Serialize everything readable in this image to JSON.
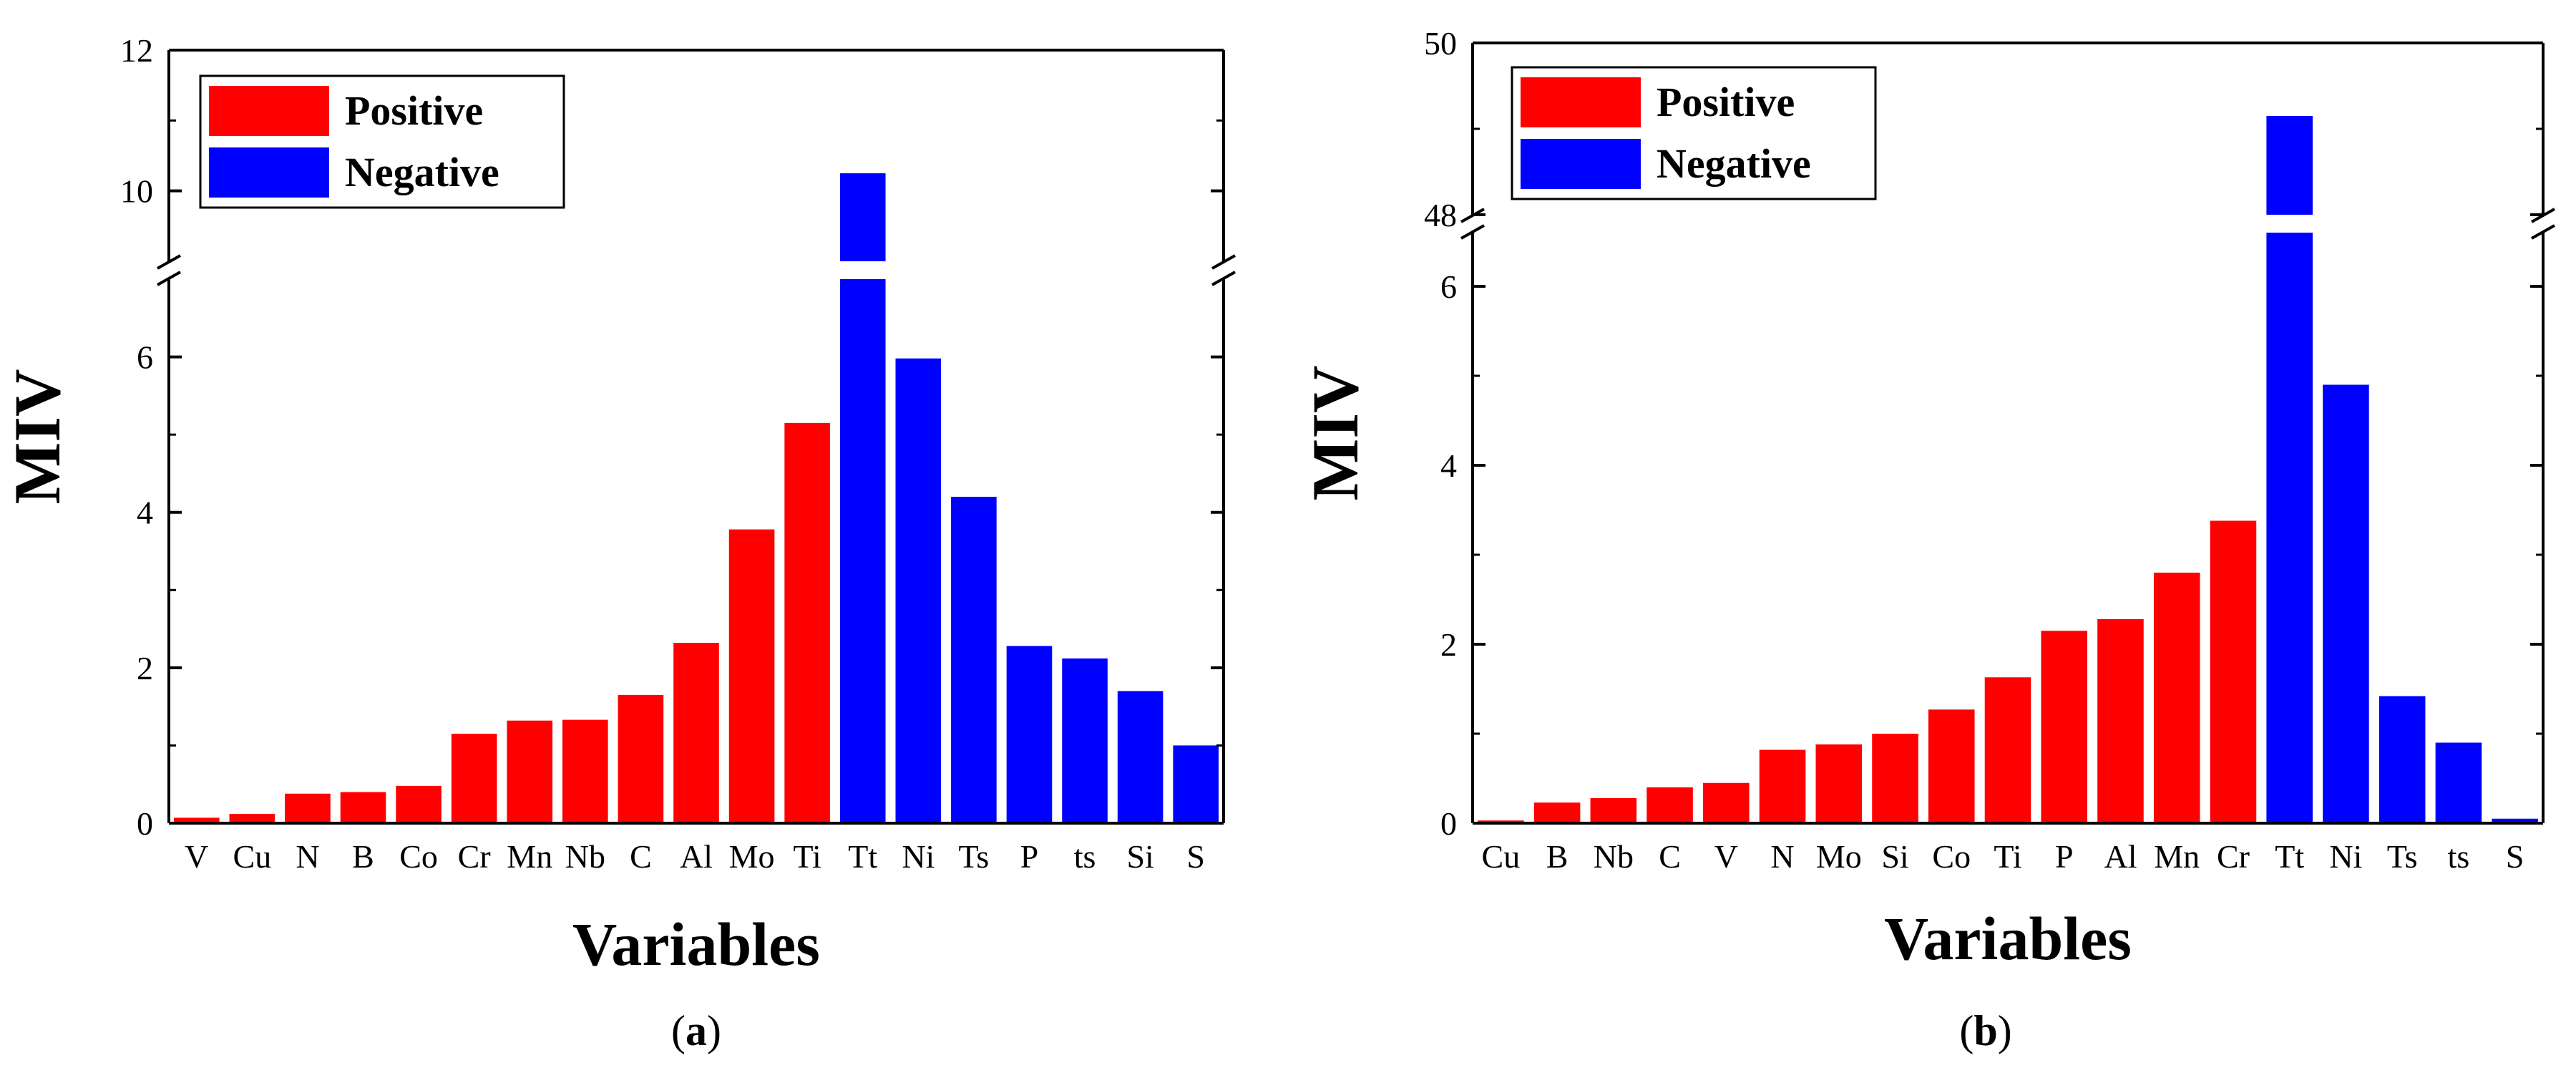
{
  "colors": {
    "positive": "#ff0000",
    "negative": "#0000ff"
  },
  "chart_data": [
    {
      "id": "a",
      "type": "bar",
      "caption_open": "(",
      "caption_letter": "a",
      "caption_close": ")",
      "xlabel": "Variables",
      "ylabel": "MIV",
      "legend": [
        {
          "label": "Positive",
          "color": "#ff0000"
        },
        {
          "label": "Negative",
          "color": "#0000ff"
        }
      ],
      "legend_position": "top-left",
      "axis_break": {
        "lower_range": [
          0,
          7
        ],
        "upper_range": [
          9,
          12
        ]
      },
      "lower_ticks": [
        0,
        2,
        4,
        6
      ],
      "upper_ticks": [
        10,
        12
      ],
      "categories": [
        "V",
        "Cu",
        "N",
        "B",
        "Co",
        "Cr",
        "Mn",
        "Nb",
        "C",
        "Al",
        "Mo",
        "Ti",
        "Tt",
        "Ni",
        "Ts",
        "P",
        "ts",
        "Si",
        "S"
      ],
      "values": [
        0.07,
        0.12,
        0.38,
        0.4,
        0.48,
        1.15,
        1.32,
        1.33,
        1.65,
        2.32,
        3.78,
        5.15,
        10.25,
        5.98,
        4.2,
        2.28,
        2.12,
        1.7,
        1.0
      ],
      "signs": [
        "Positive",
        "Positive",
        "Positive",
        "Positive",
        "Positive",
        "Positive",
        "Positive",
        "Positive",
        "Positive",
        "Positive",
        "Positive",
        "Positive",
        "Negative",
        "Negative",
        "Negative",
        "Negative",
        "Negative",
        "Negative",
        "Negative"
      ]
    },
    {
      "id": "b",
      "type": "bar",
      "caption_open": "(",
      "caption_letter": "b",
      "caption_close": ")",
      "xlabel": "Variables",
      "ylabel": "MIV",
      "legend": [
        {
          "label": "Positive",
          "color": "#ff0000"
        },
        {
          "label": "Negative",
          "color": "#0000ff"
        }
      ],
      "legend_position": "top-left",
      "axis_break": {
        "lower_range": [
          0,
          6.6
        ],
        "upper_range": [
          48,
          50
        ]
      },
      "lower_ticks": [
        0,
        2,
        4,
        6
      ],
      "upper_ticks": [
        48,
        50
      ],
      "categories": [
        "Cu",
        "B",
        "Nb",
        "C",
        "V",
        "N",
        "Mo",
        "Si",
        "Co",
        "Ti",
        "P",
        "Al",
        "Mn",
        "Cr",
        "Tt",
        "Ni",
        "Ts",
        "ts",
        "S"
      ],
      "values": [
        0.03,
        0.23,
        0.28,
        0.4,
        0.45,
        0.82,
        0.88,
        1.0,
        1.27,
        1.63,
        2.15,
        2.28,
        2.8,
        3.38,
        49.15,
        4.9,
        1.42,
        0.9,
        0.05
      ],
      "signs": [
        "Positive",
        "Positive",
        "Positive",
        "Positive",
        "Positive",
        "Positive",
        "Positive",
        "Positive",
        "Positive",
        "Positive",
        "Positive",
        "Positive",
        "Positive",
        "Positive",
        "Negative",
        "Negative",
        "Negative",
        "Negative",
        "Negative"
      ]
    }
  ]
}
